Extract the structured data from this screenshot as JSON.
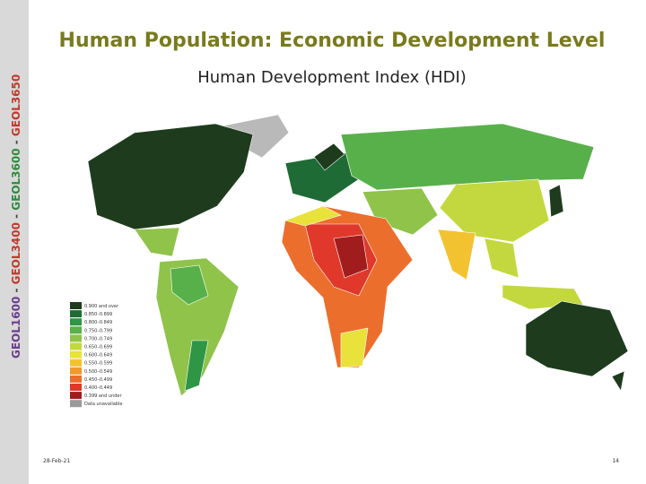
{
  "header": {
    "title": "Human Population: Economic Development Level",
    "subtitle": "Human Development Index (HDI)"
  },
  "side_label": [
    {
      "text": "GEOL1600",
      "color": "#6a3d8f"
    },
    {
      "text": " - ",
      "color": "#444444"
    },
    {
      "text": "GEOL3400",
      "color": "#c0392b"
    },
    {
      "text": " - ",
      "color": "#444444"
    },
    {
      "text": "GEOL3600",
      "color": "#2e8b3e"
    },
    {
      "text": " - ",
      "color": "#444444"
    },
    {
      "text": "GEOL3650",
      "color": "#c0392b"
    }
  ],
  "legend": [
    {
      "label": "0.900 and over",
      "color": "#1e3b1e"
    },
    {
      "label": "0.850–0.899",
      "color": "#1f6b35"
    },
    {
      "label": "0.800–0.849",
      "color": "#2e9645"
    },
    {
      "label": "0.750–0.799",
      "color": "#58b04a"
    },
    {
      "label": "0.700–0.749",
      "color": "#8fc34a"
    },
    {
      "label": "0.650–0.699",
      "color": "#c3d83e"
    },
    {
      "label": "0.600–0.649",
      "color": "#e8e23a"
    },
    {
      "label": "0.550–0.599",
      "color": "#f3c230"
    },
    {
      "label": "0.500–0.549",
      "color": "#f19a2e"
    },
    {
      "label": "0.450–0.499",
      "color": "#ec6e2c"
    },
    {
      "label": "0.400–0.449",
      "color": "#e0382a"
    },
    {
      "label": "0.399 and under",
      "color": "#a11d1d"
    },
    {
      "label": "Data unavailable",
      "color": "#9a9a9a"
    }
  ],
  "footer": {
    "date": "28-Feb-21",
    "page": "14"
  }
}
